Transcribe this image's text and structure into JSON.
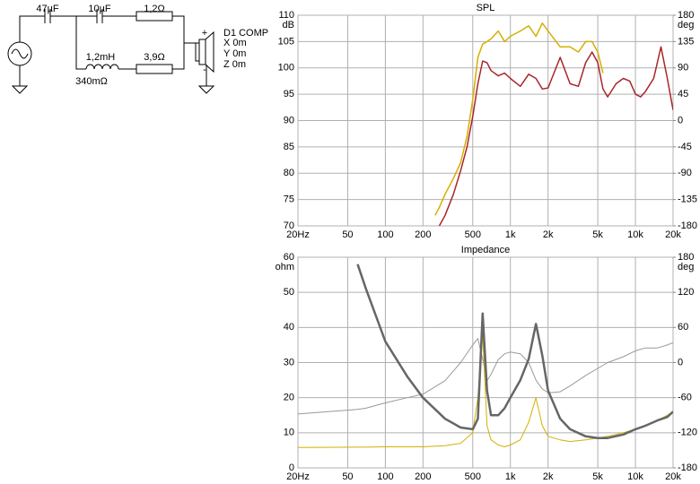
{
  "circuit": {
    "components": [
      "47µF",
      "10µF",
      "1,2Ω",
      "1,2mH",
      "340mΩ",
      "3,9Ω"
    ],
    "driver": {
      "name": "D1 COMP",
      "x": "X 0m",
      "y": "Y 0m",
      "z": "Z 0m",
      "plus": "+",
      "minus": "-"
    }
  },
  "chart_data": [
    {
      "type": "line",
      "title": "SPL",
      "xlog": true,
      "grid": true,
      "xlim": [
        20,
        20000
      ],
      "xticks": [
        {
          "value": 20,
          "label": "20Hz"
        },
        50,
        100,
        200,
        500,
        {
          "value": 1000,
          "label": "1k"
        },
        {
          "value": 2000,
          "label": "2k"
        },
        {
          "value": 5000,
          "label": "5k"
        },
        {
          "value": 10000,
          "label": "10k"
        },
        {
          "value": 20000,
          "label": "20k"
        }
      ],
      "ylabel": "dB",
      "ylim": [
        70,
        110
      ],
      "yticks": [
        70,
        75,
        80,
        85,
        90,
        95,
        100,
        105,
        110
      ],
      "y2label": "deg",
      "y2lim": [
        -180,
        180
      ],
      "y2ticks": [
        -180,
        -135,
        -90,
        -45,
        0,
        45,
        90,
        135,
        180
      ],
      "x": [
        200,
        250,
        270,
        300,
        350,
        400,
        450,
        500,
        550,
        600,
        650,
        700,
        800,
        900,
        1000,
        1200,
        1400,
        1600,
        1800,
        2000,
        2500,
        3000,
        3500,
        4000,
        4500,
        5000,
        5500,
        6000,
        7000,
        8000,
        9000,
        10000,
        11000,
        12000,
        14000,
        16000,
        18000,
        20000
      ],
      "series": [
        {
          "color": "#d4b000",
          "axis": "y",
          "values": [
            null,
            72,
            73.5,
            76,
            79,
            82,
            87,
            94,
            102,
            104.5,
            105,
            105.5,
            107,
            105,
            106,
            107,
            108,
            106,
            108.5,
            107,
            104,
            104,
            103,
            105,
            105,
            103,
            99,
            null,
            null,
            null,
            null,
            null,
            null,
            null,
            null,
            null,
            null,
            null
          ]
        },
        {
          "color": "#a8262a",
          "axis": "y",
          "values": [
            null,
            null,
            70,
            72,
            76,
            80.5,
            85,
            90.8,
            97,
            101.3,
            101,
            99.5,
            98.5,
            99,
            98,
            96.5,
            98.8,
            98,
            96,
            96.2,
            102,
            97,
            96.5,
            101,
            103,
            101,
            96,
            94.5,
            97,
            98,
            97.5,
            95,
            94.5,
            95.5,
            98,
            104,
            98,
            92
          ]
        }
      ]
    },
    {
      "type": "line",
      "title": "Impedance",
      "xlog": true,
      "grid": true,
      "xlim": [
        20,
        20000
      ],
      "xticks": [
        {
          "value": 20,
          "label": "20Hz"
        },
        50,
        100,
        200,
        500,
        {
          "value": 1000,
          "label": "1k"
        },
        {
          "value": 2000,
          "label": "2k"
        },
        {
          "value": 5000,
          "label": "5k"
        },
        {
          "value": 10000,
          "label": "10k"
        },
        {
          "value": 20000,
          "label": "20k"
        }
      ],
      "ylabel": "ohm",
      "ylim": [
        0,
        60
      ],
      "yticks": [
        0,
        10,
        20,
        30,
        40,
        50,
        60
      ],
      "y2label": "deg",
      "y2lim": [
        -180,
        180
      ],
      "y2ticks": [
        -180,
        -120,
        -60,
        0,
        60,
        120,
        180
      ],
      "x": [
        20,
        60,
        70,
        100,
        150,
        200,
        300,
        400,
        500,
        550,
        600,
        650,
        700,
        800,
        900,
        1000,
        1200,
        1400,
        1600,
        1800,
        2000,
        2500,
        3000,
        4000,
        5000,
        6000,
        8000,
        10000,
        12000,
        15000,
        18000,
        20000
      ],
      "series": [
        {
          "color": "#999999",
          "axis": "y2",
          "width": 1,
          "values": [
            -88,
            -80,
            -78,
            -69,
            -60,
            -54,
            -31,
            0,
            30,
            41,
            6,
            -31,
            -20,
            5,
            15,
            18,
            15,
            0,
            -30,
            -45,
            -52,
            -50,
            -40,
            -22,
            -10,
            0,
            10,
            20,
            25,
            25,
            30,
            34
          ]
        },
        {
          "color": "#d4b000",
          "axis": "y",
          "width": 1,
          "values": [
            5.8,
            5.9,
            5.9,
            6,
            6,
            6,
            6.3,
            7,
            10,
            20,
            38,
            12,
            8,
            6.5,
            6,
            6.5,
            8,
            13,
            20,
            12,
            9,
            8,
            7.5,
            8,
            8.5,
            9,
            10,
            11,
            12,
            13.5,
            15,
            16
          ]
        },
        {
          "color": "#666666",
          "axis": "y",
          "width": 2.5,
          "values": [
            null,
            58,
            51,
            36,
            26,
            20,
            14,
            11.5,
            11,
            14,
            44,
            22,
            15,
            15,
            17,
            20,
            25,
            31,
            41,
            32,
            22,
            14,
            11,
            9,
            8.5,
            8.5,
            9.5,
            11,
            12,
            13.5,
            14.5,
            16
          ]
        }
      ]
    }
  ]
}
